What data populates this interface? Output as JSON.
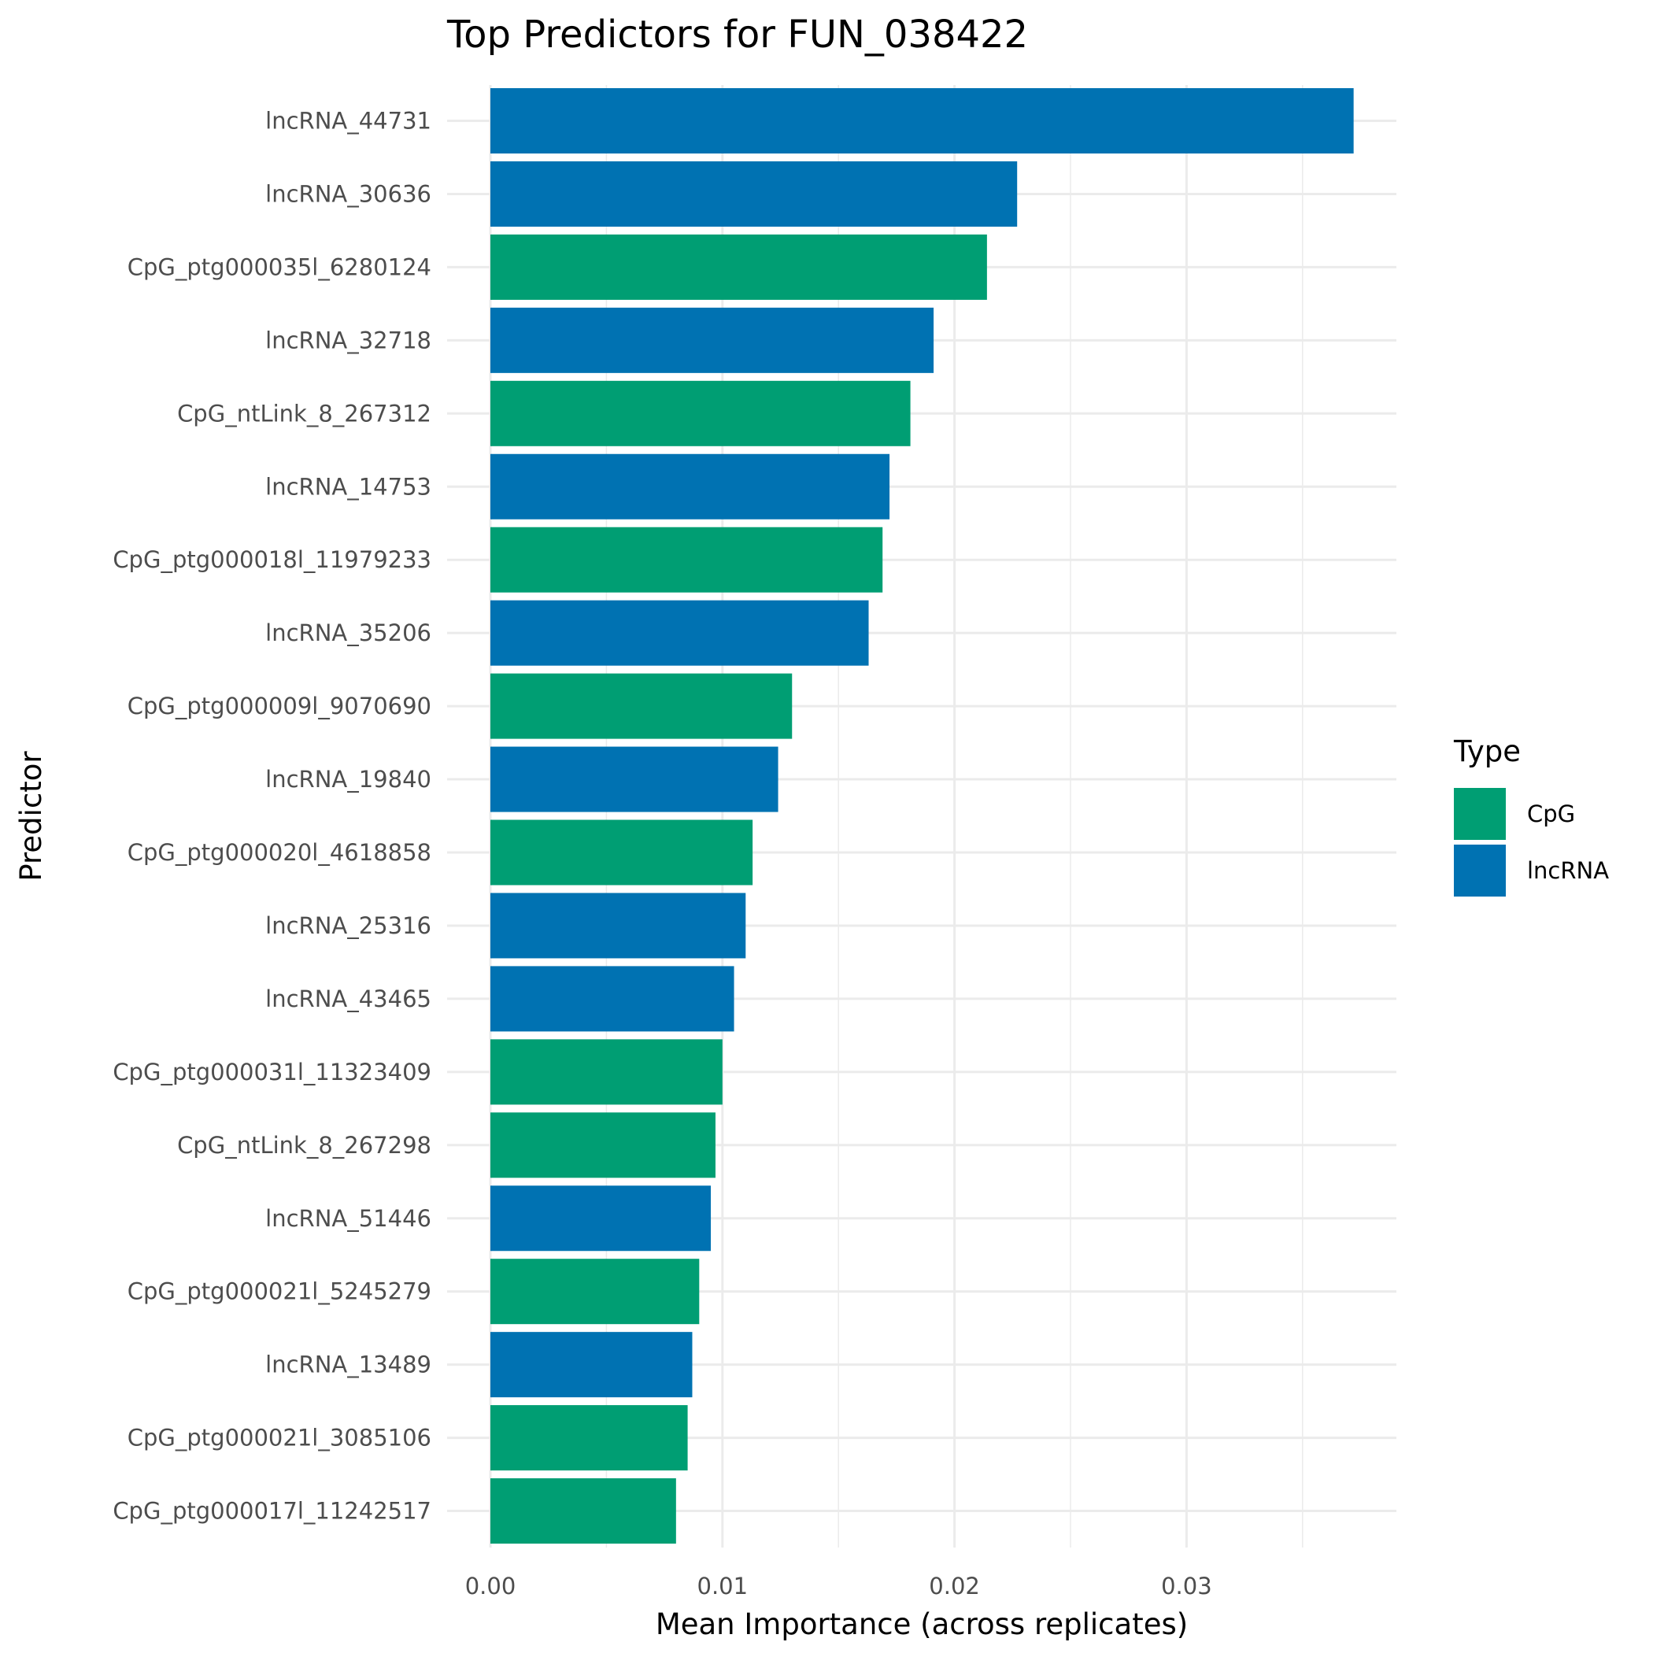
{
  "chart_data": {
    "type": "bar",
    "orientation": "horizontal",
    "title": "Top Predictors for FUN_038422",
    "xlabel": "Mean Importance (across replicates)",
    "ylabel": "Predictor",
    "xlim": [
      0,
      0.039
    ],
    "xticks": [
      "0.00",
      "0.01",
      "0.02",
      "0.03"
    ],
    "xtick_values": [
      0,
      0.01,
      0.02,
      0.03
    ],
    "grid": true,
    "legend": {
      "title": "Type",
      "placement": "right",
      "entries": [
        {
          "label": "CpG",
          "color": "#009E73"
        },
        {
          "label": "lncRNA",
          "color": "#0072B2"
        }
      ]
    },
    "categories": [
      "lncRNA_44731",
      "lncRNA_30636",
      "CpG_ptg000035l_6280124",
      "lncRNA_32718",
      "CpG_ntLink_8_267312",
      "lncRNA_14753",
      "CpG_ptg000018l_11979233",
      "lncRNA_35206",
      "CpG_ptg000009l_9070690",
      "lncRNA_19840",
      "CpG_ptg000020l_4618858",
      "lncRNA_25316",
      "lncRNA_43465",
      "CpG_ptg000031l_11323409",
      "CpG_ntLink_8_267298",
      "lncRNA_51446",
      "CpG_ptg000021l_5245279",
      "lncRNA_13489",
      "CpG_ptg000021l_3085106",
      "CpG_ptg000017l_11242517"
    ],
    "types": [
      "lncRNA",
      "lncRNA",
      "CpG",
      "lncRNA",
      "CpG",
      "lncRNA",
      "CpG",
      "lncRNA",
      "CpG",
      "lncRNA",
      "CpG",
      "lncRNA",
      "lncRNA",
      "CpG",
      "CpG",
      "lncRNA",
      "CpG",
      "lncRNA",
      "CpG",
      "CpG"
    ],
    "values": [
      0.0372,
      0.0227,
      0.0214,
      0.0191,
      0.0181,
      0.0172,
      0.0169,
      0.0163,
      0.013,
      0.0124,
      0.0113,
      0.011,
      0.0105,
      0.01,
      0.0097,
      0.0095,
      0.009,
      0.0087,
      0.0085,
      0.008
    ]
  }
}
